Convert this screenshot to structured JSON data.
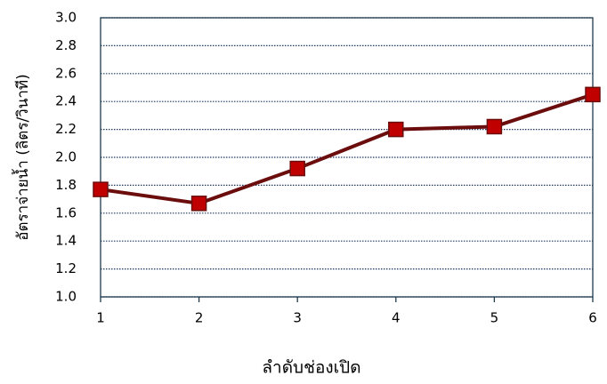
{
  "chart_data": {
    "type": "line",
    "x_label": "ลำดับช่องเปิด",
    "y_label": "อัตราจ่ายน้ำ (ลิตร/วินาที)",
    "x": [
      1,
      2,
      3,
      4,
      5,
      6
    ],
    "series": [
      {
        "color": "#6b0d0d",
        "marker_color": "#c00000",
        "values": [
          1.77,
          1.67,
          1.92,
          2.2,
          2.22,
          2.45
        ]
      }
    ],
    "xlim": [
      1,
      6
    ],
    "xticks": [
      1,
      2,
      3,
      4,
      5,
      6
    ],
    "ylim": [
      1,
      3
    ],
    "yticks": [
      {
        "value": 1,
        "label": "1.0"
      },
      1.2,
      1.4,
      1.6,
      1.8,
      {
        "value": 2,
        "label": "2.0"
      },
      2.2,
      2.4,
      2.6,
      2.8,
      {
        "value": 3,
        "label": "3.0"
      }
    ],
    "grid": true
  }
}
